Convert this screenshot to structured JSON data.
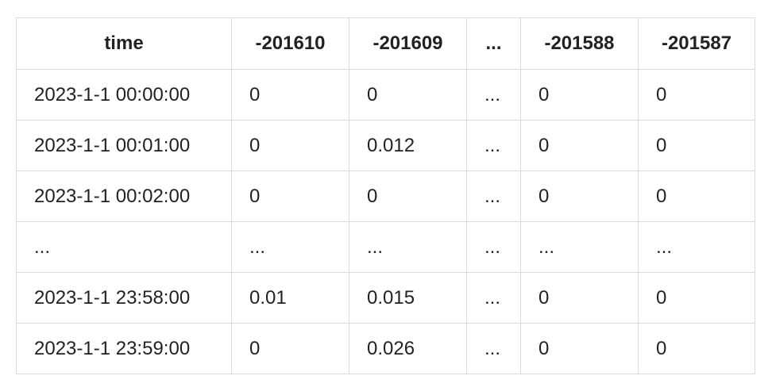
{
  "table": {
    "header": [
      "time",
      "-201610",
      "-201609",
      "...",
      "-201588",
      "-201587"
    ],
    "rows": [
      [
        "2023-1-1 00:00:00",
        "0",
        "0",
        "...",
        "0",
        "0"
      ],
      [
        "2023-1-1 00:01:00",
        "0",
        "0.012",
        "...",
        "0",
        "0"
      ],
      [
        "2023-1-1 00:02:00",
        "0",
        "0",
        "...",
        "0",
        "0"
      ],
      [
        "...",
        "...",
        "...",
        "...",
        "...",
        "..."
      ],
      [
        "2023-1-1 23:58:00",
        "0.01",
        "0.015",
        "...",
        "0",
        "0"
      ],
      [
        "2023-1-1 23:59:00",
        "0",
        "0.026",
        "...",
        "0",
        "0"
      ]
    ]
  }
}
